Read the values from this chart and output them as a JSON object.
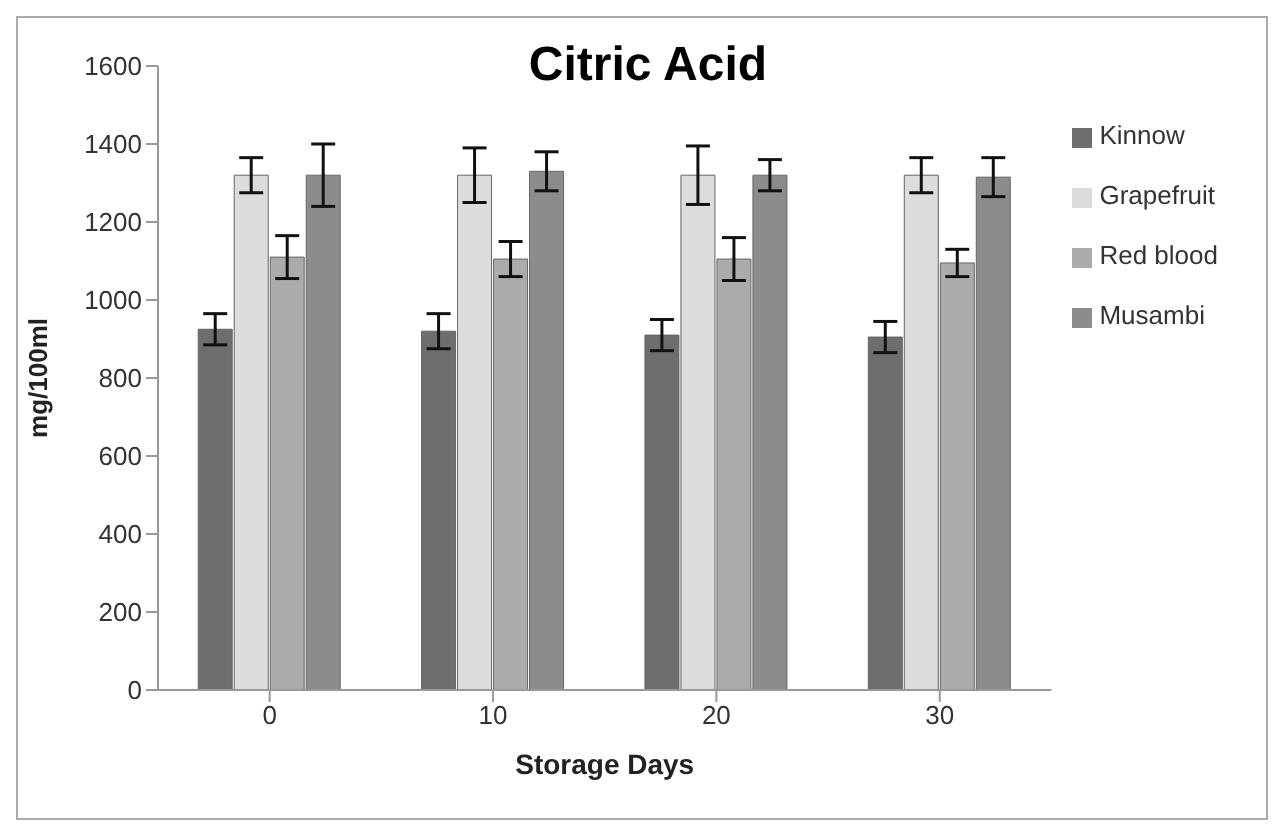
{
  "chart_data": {
    "type": "bar",
    "title": "Citric Acid",
    "xlabel": "Storage Days",
    "ylabel": "mg/100ml",
    "categories": [
      "0",
      "10",
      "20",
      "30"
    ],
    "series": [
      {
        "name": "Kinnow",
        "color": "#6e6e6e",
        "values": [
          925,
          920,
          910,
          905
        ],
        "errors": [
          40,
          45,
          40,
          40
        ]
      },
      {
        "name": "Grapefruit",
        "color": "#dcdcdc",
        "values": [
          1320,
          1320,
          1320,
          1320
        ],
        "errors": [
          45,
          70,
          75,
          45
        ]
      },
      {
        "name": "Red blood",
        "color": "#ababab",
        "values": [
          1110,
          1105,
          1105,
          1095
        ],
        "errors": [
          55,
          45,
          55,
          35
        ]
      },
      {
        "name": "Musambi",
        "color": "#8c8c8c",
        "values": [
          1320,
          1330,
          1320,
          1315
        ],
        "errors": [
          80,
          50,
          40,
          50
        ]
      }
    ],
    "ylim": [
      0,
      1600
    ],
    "yticks": [
      0,
      200,
      400,
      600,
      800,
      1000,
      1200,
      1400,
      1600
    ],
    "grid": false,
    "legend": "right"
  }
}
